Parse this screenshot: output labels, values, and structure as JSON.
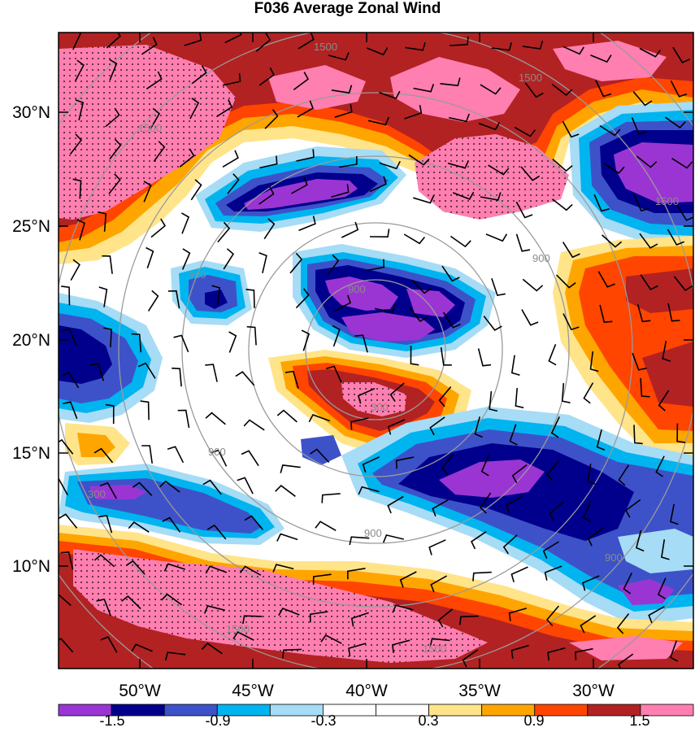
{
  "title": "F036 Average Zonal Wind",
  "lat_labels": [
    "30°N",
    "25°N",
    "20°N",
    "15°N",
    "10°N"
  ],
  "lon_labels": [
    "50°W",
    "45°W",
    "40°W",
    "35°W",
    "30°W"
  ],
  "colorbar": {
    "colors": [
      "#9a35d3",
      "#00008c",
      "#3d52c9",
      "#00b4f0",
      "#a6dcf5",
      "#ffffff",
      "#ffffff",
      "#ffe48a",
      "#ffa500",
      "#ff4500",
      "#b22222",
      "#ff7fb0"
    ],
    "labels": [
      "-1.5",
      "-0.9",
      "-0.3",
      "0.3",
      "0.9",
      "1.5"
    ]
  },
  "contour_labels": [
    "1500",
    "1500",
    "1500",
    "1500",
    "1500",
    "1500",
    "900",
    "900",
    "900",
    "900",
    "900",
    "900",
    "300",
    "300"
  ]
}
